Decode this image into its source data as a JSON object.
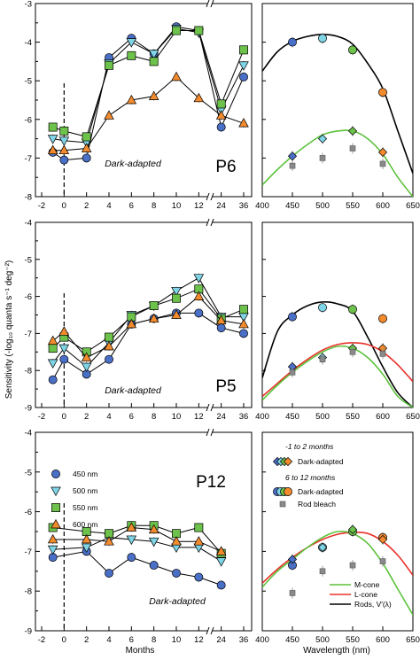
{
  "figure": {
    "ylabel": "Sensitivity (-log₁₀ quanta s⁻¹ deg⁻²)",
    "xlabel_left": "Months",
    "xlabel_right": "Wavelength (nm)"
  },
  "legend_left": {
    "items": [
      {
        "label": "450 nm",
        "color": "#4a6fc7",
        "marker": "circle"
      },
      {
        "label": "500 nm",
        "color": "#7fd4e6",
        "marker": "triangle-down"
      },
      {
        "label": "550 nm",
        "color": "#6cc24a",
        "marker": "square"
      },
      {
        "label": "600 nm",
        "color": "#f28a2e",
        "marker": "triangle-up"
      }
    ]
  },
  "legend_right": {
    "group1_title": "-1 to 2 months",
    "group1_item": "Dark-adapted",
    "group2_title": "6 to 12 months",
    "group2_item1": "Dark-adapted",
    "group2_item2": "Rod bleach",
    "lines": [
      {
        "label": "M-cone",
        "color": "#5cc23c"
      },
      {
        "label": "L-cone",
        "color": "#e8312a"
      },
      {
        "label": "Rods, V′(λ)",
        "color": "#000000"
      }
    ]
  },
  "chart_data": [
    {
      "type": "line",
      "panel": "P6",
      "annotation": "Dark-adapted",
      "xlabel": "",
      "ylabel": "",
      "x_tick_labels": [
        "-2",
        "0",
        "2",
        "4",
        "6",
        "8",
        "10",
        "12",
        "24",
        "36"
      ],
      "ylim": [
        -8,
        -3
      ],
      "y_ticks": [
        -3,
        -4,
        -5,
        -6,
        -7,
        -8
      ],
      "series": [
        {
          "name": "450 nm",
          "x": [
            "-1",
            "0",
            "2",
            "4",
            "6",
            "8",
            "10",
            "12",
            "24",
            "36"
          ],
          "values": [
            -6.85,
            -7.05,
            -7.0,
            -4.4,
            -3.9,
            -4.3,
            -3.6,
            -3.7,
            -6.2,
            -4.9
          ]
        },
        {
          "name": "500 nm",
          "x": [
            "-1",
            "0",
            "2",
            "4",
            "6",
            "8",
            "10",
            "12",
            "24",
            "36"
          ],
          "values": [
            -6.5,
            -6.55,
            -6.6,
            -4.55,
            -4.0,
            -4.3,
            -3.65,
            -3.75,
            -5.75,
            -4.6
          ]
        },
        {
          "name": "550 nm",
          "x": [
            "-1",
            "0",
            "2",
            "4",
            "6",
            "8",
            "10",
            "12",
            "24",
            "36"
          ],
          "values": [
            -6.2,
            -6.3,
            -6.45,
            -4.6,
            -4.35,
            -4.5,
            -3.7,
            -3.7,
            -5.6,
            -4.2
          ]
        },
        {
          "name": "600 nm",
          "x": [
            "-1",
            "0",
            "2",
            "4",
            "6",
            "8",
            "10",
            "12",
            "24",
            "36"
          ],
          "values": [
            -6.8,
            -6.8,
            -6.75,
            -5.9,
            -5.5,
            -5.4,
            -4.9,
            -5.45,
            -5.9,
            -6.1
          ]
        }
      ]
    },
    {
      "type": "line",
      "panel": "P5",
      "annotation": "Dark-adapted",
      "xlabel": "",
      "ylabel": "",
      "x_tick_labels": [
        "-2",
        "0",
        "2",
        "4",
        "6",
        "8",
        "10",
        "12",
        "24",
        "36"
      ],
      "ylim": [
        -9,
        -4
      ],
      "y_ticks": [
        -4,
        -5,
        -6,
        -7,
        -8,
        -9
      ],
      "series": [
        {
          "name": "450 nm",
          "x": [
            "-1",
            "0",
            "2",
            "4",
            "6",
            "8",
            "10",
            "12",
            "24",
            "36"
          ],
          "values": [
            -8.25,
            -7.7,
            -8.1,
            -7.7,
            -6.75,
            -6.6,
            -6.45,
            -6.45,
            -6.85,
            -7.0
          ]
        },
        {
          "name": "500 nm",
          "x": [
            "-1",
            "0",
            "2",
            "4",
            "6",
            "8",
            "10",
            "12",
            "24",
            "36"
          ],
          "values": [
            -7.8,
            -7.4,
            -7.9,
            -7.25,
            -6.5,
            -6.25,
            -5.85,
            -5.5,
            -6.55,
            -6.55
          ]
        },
        {
          "name": "550 nm",
          "x": [
            "-1",
            "0",
            "2",
            "4",
            "6",
            "8",
            "10",
            "12",
            "24",
            "36"
          ],
          "values": [
            -7.4,
            -7.1,
            -7.5,
            -7.1,
            -6.55,
            -6.25,
            -6.05,
            -5.8,
            -6.6,
            -6.35
          ]
        },
        {
          "name": "600 nm",
          "x": [
            "-1",
            "0",
            "2",
            "4",
            "6",
            "8",
            "10",
            "12",
            "24",
            "36"
          ],
          "values": [
            -7.2,
            -6.95,
            -7.65,
            -7.35,
            -6.75,
            -6.6,
            -6.5,
            -6.0,
            -6.65,
            -6.75
          ]
        }
      ]
    },
    {
      "type": "line",
      "panel": "P12",
      "annotation": "Dark-adapted",
      "xlabel": "Months",
      "ylabel": "",
      "x_tick_labels": [
        "-2",
        "0",
        "2",
        "4",
        "6",
        "8",
        "10",
        "12",
        "24",
        "36"
      ],
      "ylim": [
        -9,
        -4
      ],
      "y_ticks": [
        -4,
        -5,
        -6,
        -7,
        -8,
        -9
      ],
      "series": [
        {
          "name": "450 nm",
          "x": [
            "-1",
            "2",
            "4",
            "6",
            "8",
            "10",
            "12",
            "24"
          ],
          "values": [
            -7.15,
            -7.0,
            -7.55,
            -7.15,
            -7.35,
            -7.55,
            -7.65,
            -7.85
          ]
        },
        {
          "name": "500 nm",
          "x": [
            "-1",
            "2",
            "4",
            "6",
            "8",
            "10",
            "12",
            "24"
          ],
          "values": [
            -6.95,
            -6.9,
            -6.65,
            -6.7,
            -6.75,
            -6.9,
            -6.9,
            -7.25
          ]
        },
        {
          "name": "550 nm",
          "x": [
            "-1",
            "2",
            "4",
            "6",
            "8",
            "10",
            "12",
            "24"
          ],
          "values": [
            -6.4,
            -6.5,
            -6.55,
            -6.35,
            -6.35,
            -6.55,
            -6.4,
            -7.05
          ]
        },
        {
          "name": "600 nm",
          "x": [
            "-1",
            "2",
            "4",
            "6",
            "8",
            "10",
            "12",
            "24"
          ],
          "values": [
            -6.7,
            -6.7,
            -6.75,
            -6.4,
            -6.45,
            -6.75,
            -6.75,
            -7.0
          ]
        }
      ]
    },
    {
      "type": "scatter",
      "panel": "P6 spectrum",
      "xlabel": "",
      "xlim": [
        400,
        650
      ],
      "ylim": [
        -8,
        -3
      ],
      "x_ticks": [
        400,
        450,
        500,
        550,
        600,
        650
      ],
      "curves": [
        {
          "name": "Rods",
          "x": [
            400,
            425,
            450,
            475,
            500,
            525,
            550,
            575,
            600,
            625,
            650
          ],
          "values": [
            -4.75,
            -4.25,
            -3.98,
            -3.85,
            -3.8,
            -3.85,
            -4.05,
            -4.55,
            -5.2,
            -6.3,
            -7.4
          ]
        },
        {
          "name": "M-cone",
          "x": [
            400,
            425,
            450,
            475,
            500,
            525,
            550,
            575,
            600,
            625,
            650
          ],
          "values": [
            -7.7,
            -7.3,
            -6.95,
            -6.65,
            -6.4,
            -6.3,
            -6.3,
            -6.5,
            -6.9,
            -7.5,
            -8.0
          ]
        }
      ],
      "points": [
        {
          "group": "6 to 12 months, dark-adapted",
          "x": [
            450,
            500,
            550,
            600
          ],
          "values": [
            -4.0,
            -3.9,
            -4.2,
            -5.3
          ],
          "colors": [
            "#4a6fc7",
            "#7fd4e6",
            "#6cc24a",
            "#f28a2e"
          ]
        },
        {
          "group": "-1 to 2 months, dark-adapted",
          "x": [
            450,
            500,
            550,
            600
          ],
          "values": [
            -6.95,
            -6.5,
            -6.3,
            -6.85
          ],
          "colors": [
            "#4a6fc7",
            "#7fd4e6",
            "#6cc24a",
            "#f28a2e"
          ]
        },
        {
          "group": "Rod bleach",
          "x": [
            450,
            500,
            550,
            600
          ],
          "values": [
            -7.2,
            -7.0,
            -6.75,
            -7.15
          ]
        }
      ]
    },
    {
      "type": "scatter",
      "panel": "P5 spectrum",
      "xlabel": "",
      "xlim": [
        400,
        650
      ],
      "ylim": [
        -9,
        -4
      ],
      "x_ticks": [
        400,
        450,
        500,
        550,
        600,
        650
      ],
      "curves": [
        {
          "name": "Rods",
          "x": [
            400,
            425,
            450,
            475,
            500,
            525,
            550,
            575,
            600,
            625,
            650
          ],
          "values": [
            -8.2,
            -6.95,
            -6.5,
            -6.25,
            -6.15,
            -6.2,
            -6.4,
            -7.1,
            -7.9,
            -8.6,
            -9.0
          ]
        },
        {
          "name": "L-cone",
          "x": [
            400,
            425,
            450,
            475,
            500,
            525,
            550,
            575,
            600,
            625,
            650
          ],
          "values": [
            -8.7,
            -8.35,
            -8.0,
            -7.7,
            -7.45,
            -7.3,
            -7.25,
            -7.3,
            -7.5,
            -7.85,
            -8.3
          ]
        },
        {
          "name": "M-cone",
          "x": [
            400,
            425,
            450,
            475,
            500,
            525,
            550,
            575,
            600,
            625,
            650
          ],
          "values": [
            -8.8,
            -8.4,
            -8.05,
            -7.75,
            -7.5,
            -7.35,
            -7.4,
            -7.65,
            -8.1,
            -8.7,
            -9.0
          ]
        }
      ],
      "points": [
        {
          "group": "6 to 12 months, dark-adapted",
          "x": [
            450,
            500,
            550,
            600
          ],
          "values": [
            -6.55,
            -6.3,
            -6.35,
            -6.6
          ],
          "colors": [
            "#4a6fc7",
            "#7fd4e6",
            "#6cc24a",
            "#f28a2e"
          ]
        },
        {
          "group": "-1 to 2 months, dark-adapted",
          "x": [
            450,
            500,
            550,
            600
          ],
          "values": [
            -7.9,
            -7.65,
            -7.4,
            -7.4
          ],
          "colors": [
            "#4a6fc7",
            "#7fd4e6",
            "#6cc24a",
            "#f28a2e"
          ]
        },
        {
          "group": "Rod bleach",
          "x": [
            450,
            500,
            550,
            600
          ],
          "values": [
            -8.05,
            -7.7,
            -7.5,
            -7.55
          ]
        }
      ]
    },
    {
      "type": "scatter",
      "panel": "P12 spectrum",
      "xlabel": "Wavelength (nm)",
      "xlim": [
        400,
        650
      ],
      "ylim": [
        -9,
        -4
      ],
      "x_ticks": [
        400,
        450,
        500,
        550,
        600,
        650
      ],
      "curves": [
        {
          "name": "L-cone",
          "x": [
            400,
            425,
            450,
            475,
            500,
            525,
            550,
            575,
            600,
            625,
            650
          ],
          "values": [
            -7.8,
            -7.45,
            -7.15,
            -6.9,
            -6.7,
            -6.57,
            -6.52,
            -6.55,
            -6.75,
            -7.1,
            -7.6
          ]
        },
        {
          "name": "M-cone",
          "x": [
            400,
            425,
            450,
            475,
            500,
            525,
            550,
            575,
            600,
            625,
            650
          ],
          "values": [
            -7.9,
            -7.5,
            -7.2,
            -6.9,
            -6.65,
            -6.5,
            -6.55,
            -6.8,
            -7.3,
            -7.95,
            -8.6
          ]
        }
      ],
      "points": [
        {
          "group": "6 to 12 months, dark-adapted",
          "x": [
            450,
            500,
            550,
            600
          ],
          "values": [
            -7.35,
            -6.9,
            -6.5,
            -6.65
          ],
          "colors": [
            "#4a6fc7",
            "#7fd4e6",
            "#6cc24a",
            "#f28a2e"
          ]
        },
        {
          "group": "-1 to 2 months, dark-adapted",
          "x": [
            450,
            500,
            550,
            600
          ],
          "values": [
            -7.2,
            -6.9,
            -6.45,
            -6.7
          ],
          "colors": [
            "#4a6fc7",
            "#7fd4e6",
            "#6cc24a",
            "#f28a2e"
          ]
        },
        {
          "group": "Rod bleach",
          "x": [
            450,
            500,
            550,
            600
          ],
          "values": [
            -8.05,
            -7.5,
            -7.35,
            -7.25
          ]
        }
      ]
    }
  ]
}
